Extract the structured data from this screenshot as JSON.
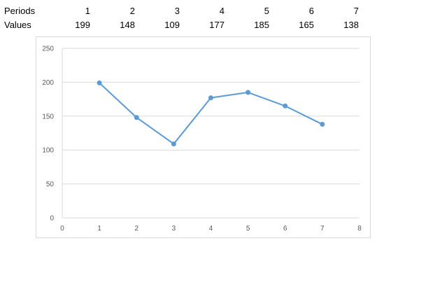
{
  "table": {
    "periods_label": "Periods",
    "values_label": "Values",
    "periods": [
      "1",
      "2",
      "3",
      "4",
      "5",
      "6",
      "7"
    ],
    "values": [
      "199",
      "148",
      "109",
      "177",
      "185",
      "165",
      "138"
    ]
  },
  "chart_data": {
    "type": "scatter",
    "title": "",
    "xlabel": "",
    "ylabel": "",
    "x": [
      1,
      2,
      3,
      4,
      5,
      6,
      7
    ],
    "series": [
      {
        "values": [
          199,
          148,
          109,
          177,
          185,
          165,
          138
        ]
      }
    ],
    "xlim": [
      0,
      8
    ],
    "ylim": [
      0,
      250
    ],
    "x_ticks": [
      "0",
      "1",
      "2",
      "3",
      "4",
      "5",
      "6",
      "7",
      "8"
    ],
    "y_ticks": [
      "0",
      "50",
      "100",
      "150",
      "200",
      "250"
    ],
    "grid": "horizontal",
    "legend": "none",
    "line_color": "#5b9bd5",
    "grid_color": "#d9d9d9",
    "markers": true,
    "lines": true
  }
}
